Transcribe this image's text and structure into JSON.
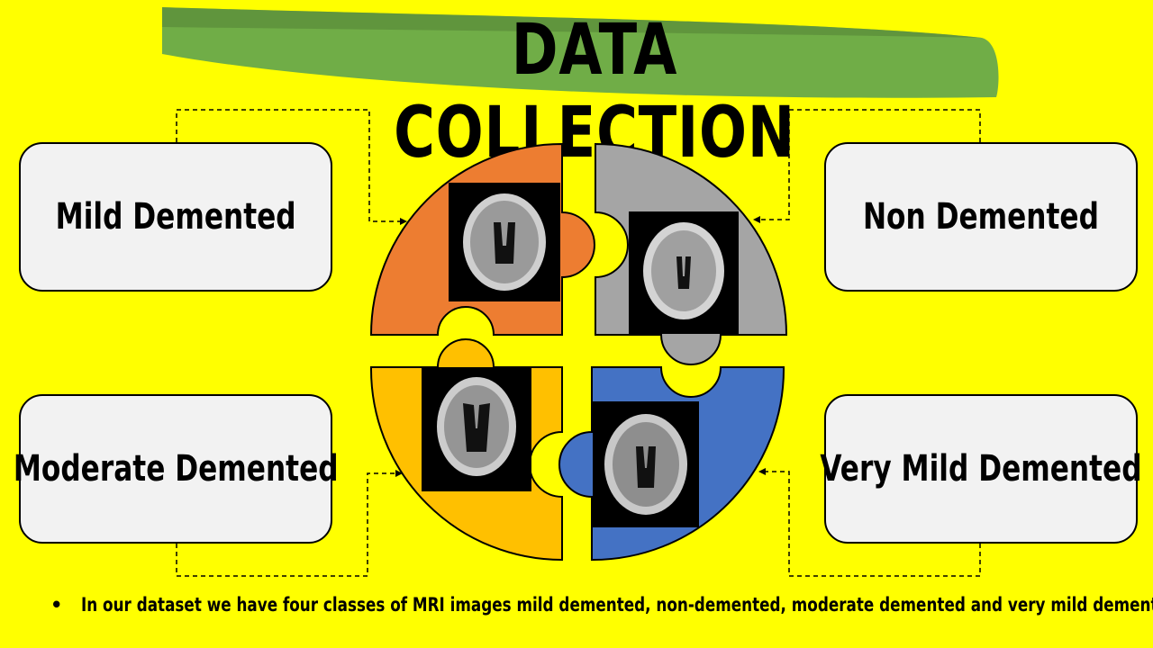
{
  "title": "DATA COLLECTION",
  "classes": {
    "mild": "Mild Demented",
    "non": "Non Demented",
    "moderate": "Moderate Demented",
    "very_mild": "Very Mild Demented"
  },
  "footer": {
    "bullet": "•",
    "text": "In our dataset we have four classes of MRI images mild demented, non-demented, moderate demented and very mild demented."
  },
  "colors": {
    "background": "#ffff00",
    "banner": "#70ad47",
    "piece_mild": "#ed7d31",
    "piece_non": "#a5a5a5",
    "piece_moderate": "#ffc000",
    "piece_very_mild": "#4472c4"
  }
}
